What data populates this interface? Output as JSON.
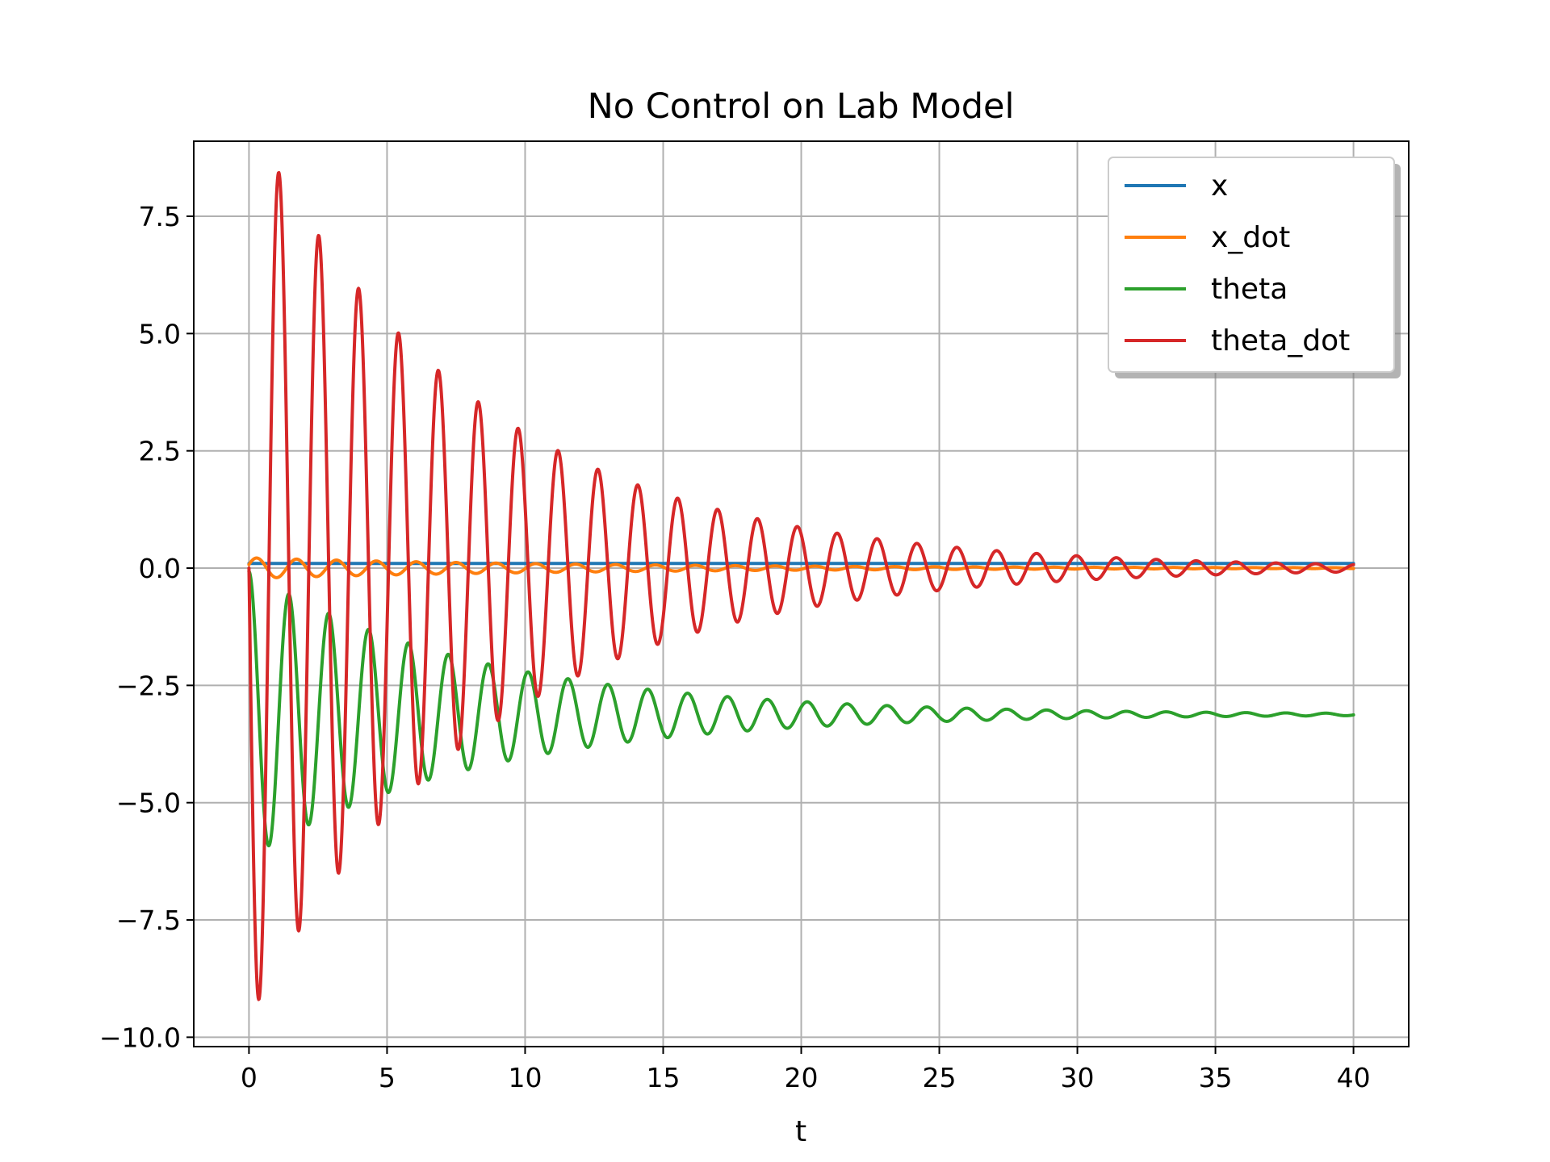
{
  "chart_data": {
    "type": "line",
    "title": "No Control on Lab Model",
    "xlabel": "t",
    "ylabel": "",
    "xlim": [
      -2,
      42
    ],
    "ylim": [
      -10.2,
      9.1
    ],
    "xticks": [
      0,
      5,
      10,
      15,
      20,
      25,
      30,
      35,
      40
    ],
    "yticks": [
      -10.0,
      -7.5,
      -5.0,
      -2.5,
      0.0,
      2.5,
      5.0,
      7.5
    ],
    "grid": true,
    "legend": "top-right",
    "series": [
      {
        "name": "x",
        "color": "#1f77b4",
        "model": {
          "kind": "constant",
          "t_start": 0,
          "t_end": 40,
          "value": 0.1
        }
      },
      {
        "name": "x_dot",
        "color": "#ff7f0e",
        "model": {
          "kind": "damped_sine",
          "t_start": 0,
          "t_end": 40,
          "offset": 0,
          "amplitude": 0.22,
          "decay": 0.08,
          "omega": 4.35,
          "phase": 0.35
        }
      },
      {
        "name": "theta",
        "color": "#2ca02c",
        "model": {
          "kind": "damped_cosine_offset",
          "t_start": 0,
          "t_end": 40,
          "offset": -3.12,
          "amplitude": 3.05,
          "decay": 0.12,
          "omega": 4.35
        }
      },
      {
        "name": "theta_dot",
        "color": "#d62728",
        "model": {
          "kind": "damped_sine",
          "t_start": 0,
          "t_end": 40,
          "offset": 0,
          "amplitude": -9.6,
          "decay": 0.12,
          "omega": 4.35,
          "phase": 0
        }
      }
    ]
  }
}
